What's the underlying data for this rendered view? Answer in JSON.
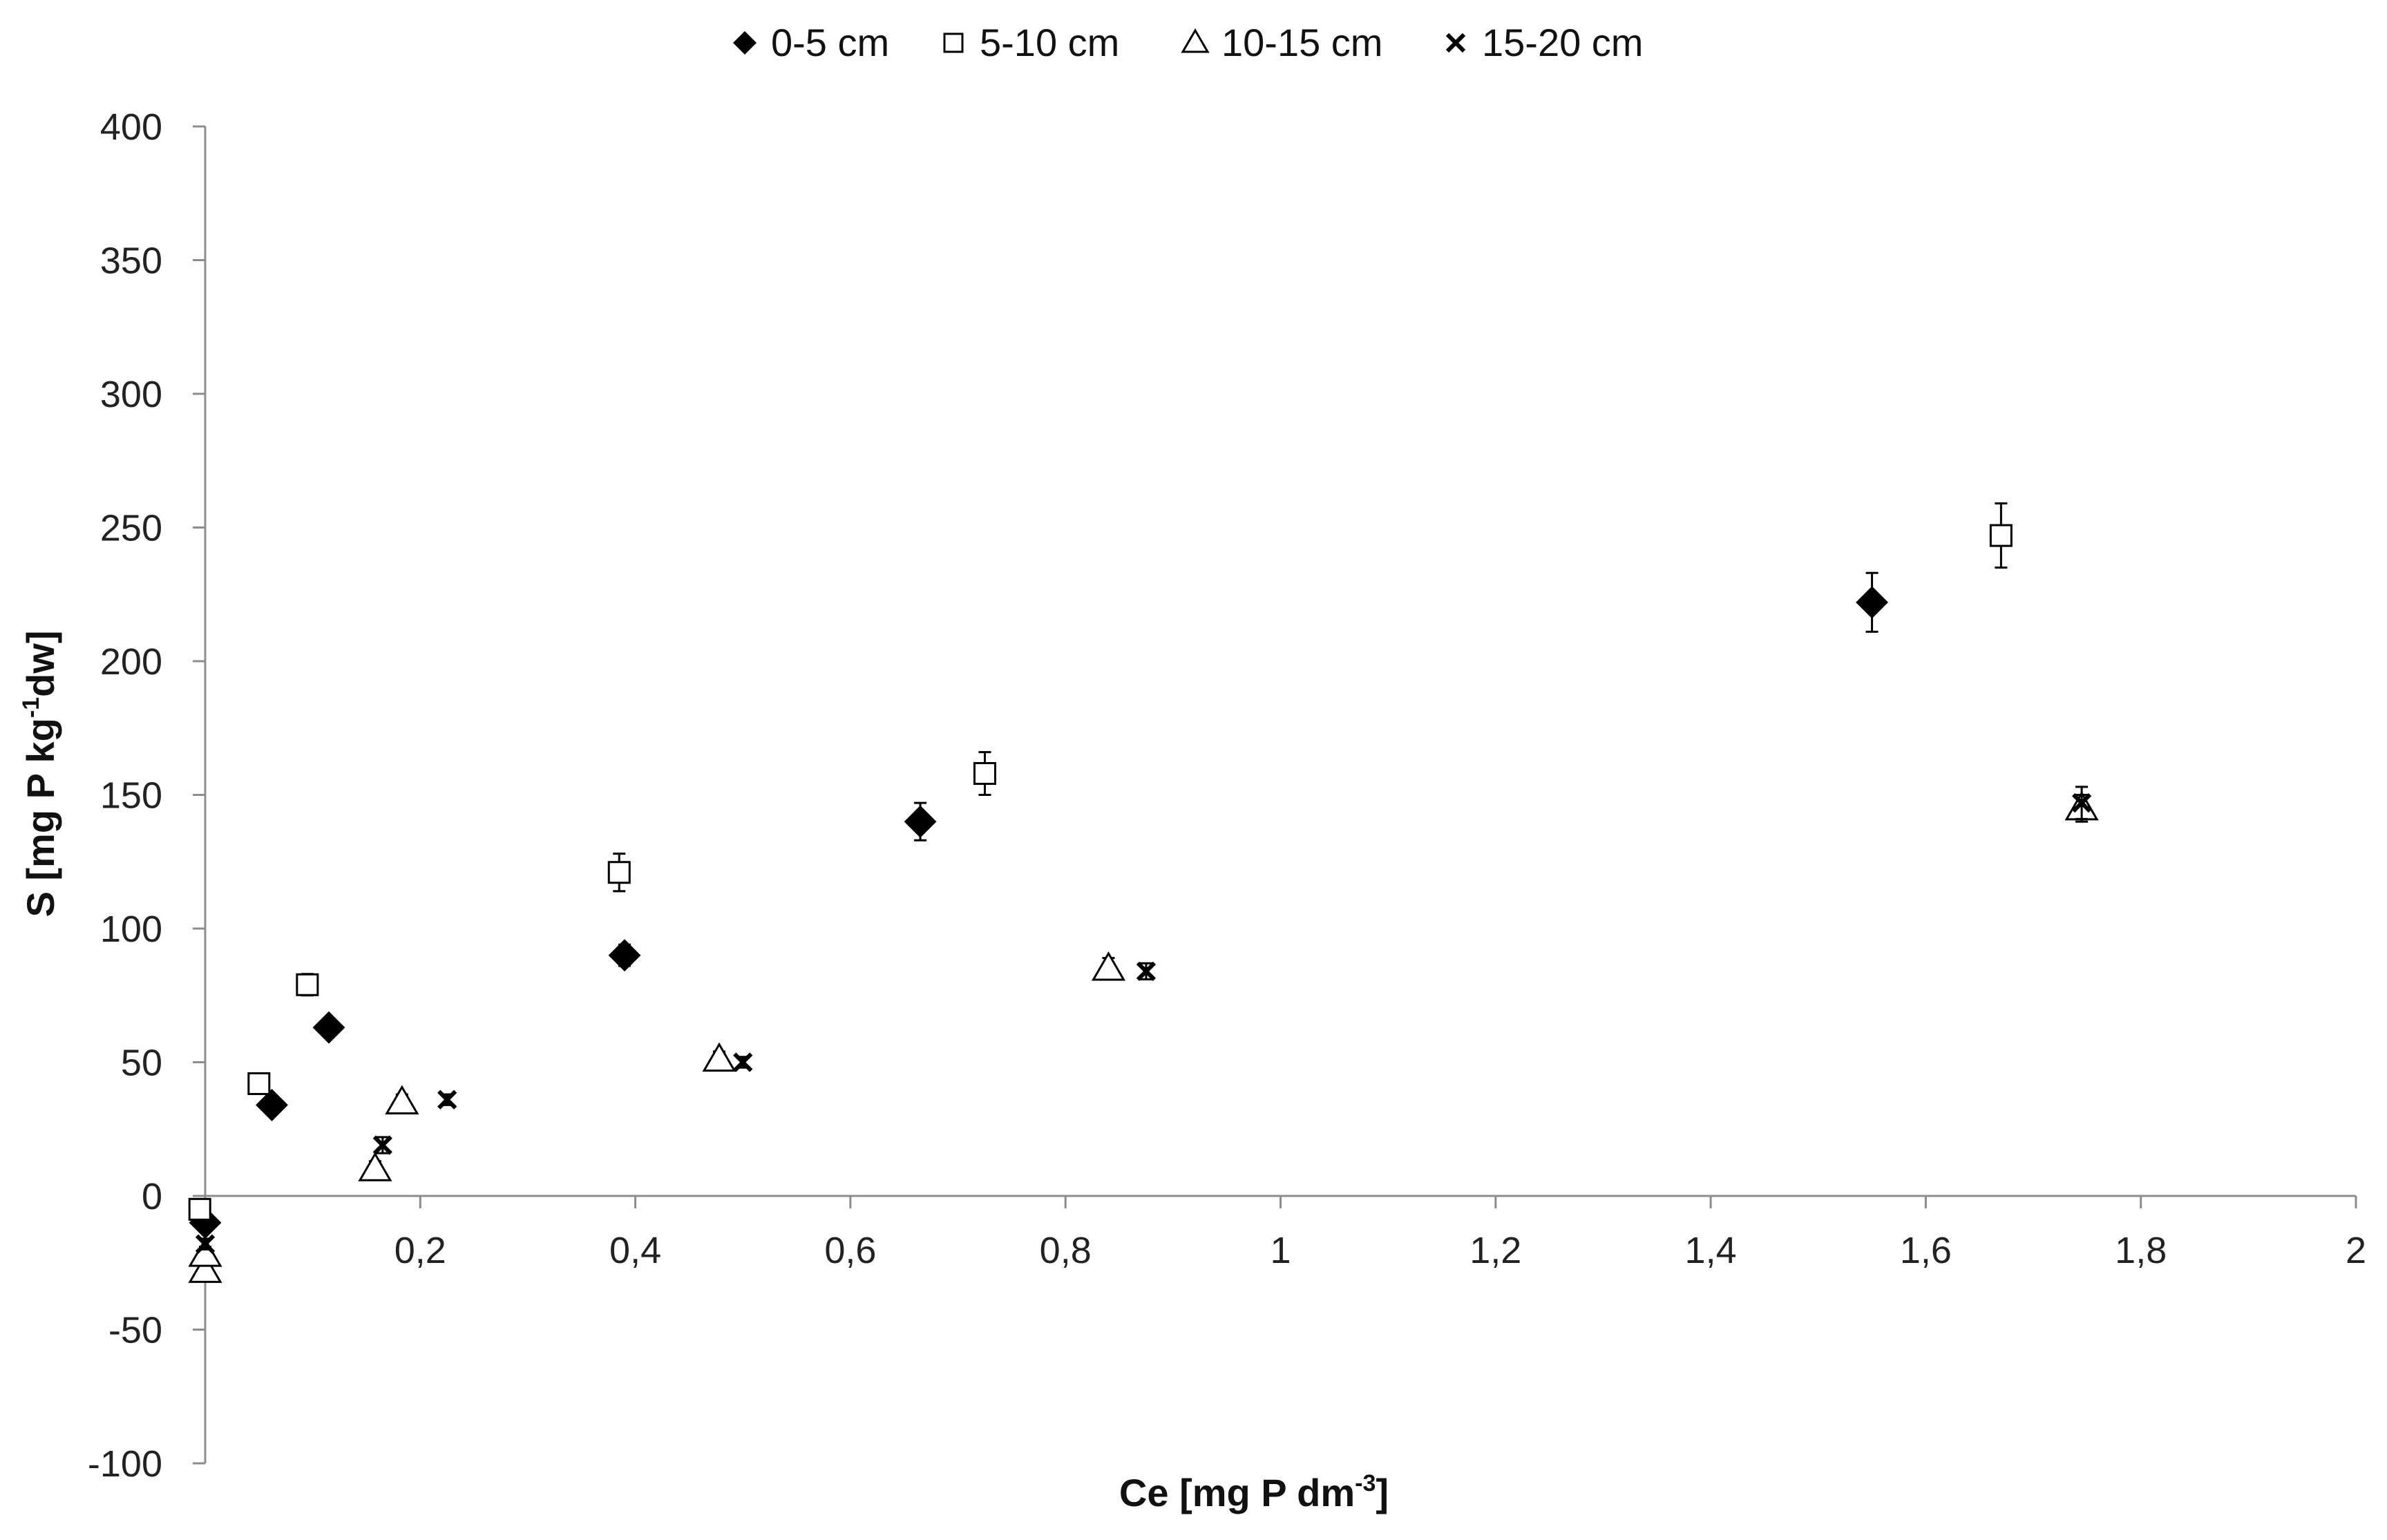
{
  "chart_data": {
    "type": "scatter",
    "title": "",
    "xlabel": {
      "pre": "Ce [mg  P dm",
      "sup": "-3",
      "post": "]"
    },
    "ylabel": {
      "pre": "S [mg P kg",
      "sup": "-1",
      "post": "dw]"
    },
    "xlim": [
      0,
      2
    ],
    "ylim": [
      -100,
      400
    ],
    "x_ticks": [
      0,
      0.2,
      0.4,
      0.6,
      0.8,
      1,
      1.2,
      1.4,
      1.6,
      1.8,
      2
    ],
    "x_tick_labels": [
      "",
      "0,2",
      "0,4",
      "0,6",
      "0,8",
      "1",
      "1,2",
      "1,4",
      "1,6",
      "1,8",
      "2"
    ],
    "y_ticks": [
      -100,
      -50,
      0,
      50,
      100,
      150,
      200,
      250,
      300,
      350,
      400
    ],
    "y_tick_labels": [
      "-100",
      "-50",
      "0",
      "50",
      "100",
      "150",
      "200",
      "250",
      "300",
      "350",
      "400"
    ],
    "grid": false,
    "legend_position": "top-center",
    "series": [
      {
        "name": "0-5 cm",
        "marker": "diamond-filled",
        "color": "#000000",
        "x": [
          0.0,
          0.062,
          0.115,
          0.39,
          0.665,
          1.55
        ],
        "y": [
          -10,
          34,
          63,
          90,
          140,
          222
        ],
        "err": [
          2,
          3,
          3,
          4,
          7,
          11
        ]
      },
      {
        "name": "5-10 cm",
        "marker": "square-open",
        "color": "#000000",
        "x": [
          -0.005,
          0.05,
          0.095,
          0.385,
          0.725,
          1.67
        ],
        "y": [
          -5,
          42,
          79,
          121,
          158,
          247
        ],
        "err": [
          2,
          3,
          4,
          7,
          8,
          12
        ]
      },
      {
        "name": "10-15 cm",
        "marker": "triangle-open",
        "color": "#000000",
        "x": [
          0.0,
          0.0,
          0.158,
          0.183,
          0.478,
          0.84,
          1.745
        ],
        "y": [
          -28,
          -22,
          10,
          35,
          51,
          85,
          145
        ],
        "err": [
          3,
          3,
          3,
          3,
          3,
          4,
          5
        ]
      },
      {
        "name": "15-20 cm",
        "marker": "x",
        "color": "#000000",
        "x": [
          0.0,
          0.165,
          0.225,
          0.5,
          0.875,
          1.745
        ],
        "y": [
          -18,
          19,
          36,
          50,
          84,
          147
        ],
        "err": [
          2,
          3,
          2,
          2,
          3,
          6
        ]
      }
    ]
  }
}
